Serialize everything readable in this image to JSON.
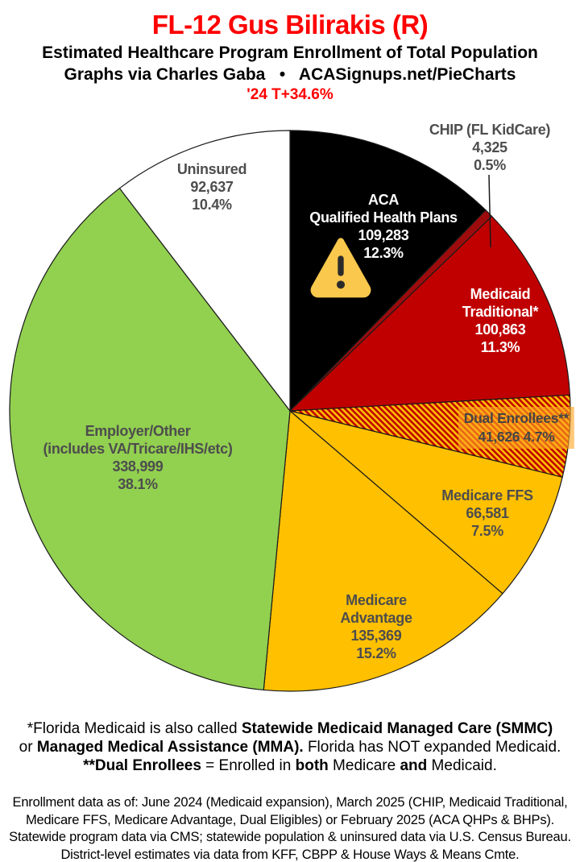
{
  "header": {
    "title": "FL-12 Gus Bilirakis (R)",
    "title_color": "#FF0000",
    "subtitle": "Estimated Healthcare Program Enrollment of Total Population",
    "byline": "Graphs via Charles Gaba   •   ACASignups.net/PieCharts",
    "trend": "'24 T+34.6%"
  },
  "chart_data": {
    "type": "pie",
    "title": "Estimated Healthcare Program Enrollment of Total Population",
    "start_angle_deg": 0,
    "direction": "clockwise",
    "total_population_shown_as_pct": 100,
    "slices": [
      {
        "name": "aca-qhp",
        "label": "ACA Qualified Health Plans",
        "value": 109283,
        "pct": 12.3,
        "color": "#000000",
        "hatch": false
      },
      {
        "name": "chip",
        "label": "CHIP (FL KidCare)",
        "value": 4325,
        "pct": 0.5,
        "color": "#9E0B0C",
        "hatch": false
      },
      {
        "name": "medicaid-traditional",
        "label": "Medicaid Traditional*",
        "value": 100863,
        "pct": 11.3,
        "color": "#C00000",
        "hatch": false
      },
      {
        "name": "dual-enrollees",
        "label": "Dual Enrollees**",
        "value": 41626,
        "pct": 4.7,
        "color": "#C00000",
        "hatch": true,
        "hatch_colors": [
          "#FFC000",
          "#C00000"
        ]
      },
      {
        "name": "medicare-ffs",
        "label": "Medicare FFS",
        "value": 66581,
        "pct": 7.5,
        "color": "#FFC000",
        "hatch": false
      },
      {
        "name": "medicare-advantage",
        "label": "Medicare Advantage",
        "value": 135369,
        "pct": 15.2,
        "color": "#FFC000",
        "hatch": false
      },
      {
        "name": "employer-other",
        "label": "Employer/Other (includes VA/Tricare/IHS/etc)",
        "value": 338999,
        "pct": 38.1,
        "color": "#92D050",
        "hatch": false
      },
      {
        "name": "uninsured",
        "label": "Uninsured",
        "value": 92637,
        "pct": 10.4,
        "color": "#FFFFFF",
        "hatch": false
      }
    ]
  },
  "labels": {
    "aca": {
      "lines": [
        "ACA",
        "Qualified Health Plans",
        "109,283",
        "12.3%"
      ]
    },
    "chip": {
      "lines": [
        "CHIP (FL KidCare)",
        "4,325",
        "0.5%"
      ]
    },
    "medicaid": {
      "lines": [
        "Medicaid",
        "Traditional*",
        "100,863",
        "11.3%"
      ]
    },
    "dual": {
      "lines": [
        "Dual Enrollees**",
        "41,626 4.7%"
      ]
    },
    "ffs": {
      "lines": [
        "Medicare FFS",
        "66,581",
        "7.5%"
      ]
    },
    "advantage": {
      "lines": [
        "Medicare",
        "Advantage",
        "135,369",
        "15.2%"
      ]
    },
    "employer": {
      "lines": [
        "Employer/Other",
        "(includes VA/Tricare/IHS/etc)",
        "338,999",
        "38.1%"
      ]
    },
    "uninsured": {
      "lines": [
        "Uninsured",
        "92,637",
        "10.4%"
      ]
    }
  },
  "warning_icon": {
    "meaning": "warning-triangle",
    "triangle_color": "#F9C84C",
    "mark_color": "#2B2B2B"
  },
  "footnote_1": {
    "l1_a": "*Florida Medicaid is also called ",
    "l1_b": "Statewide Medicaid Managed Care (SMMC)",
    "l2_a": "or ",
    "l2_b": "Managed Medical Assistance (MMA).",
    "l2_c": " Florida has NOT expanded Medicaid.",
    "l3_a": "**Dual Enrollees",
    "l3_b": " = Enrolled in ",
    "l3_c": "both",
    "l3_d": " Medicare ",
    "l3_e": "and",
    "l3_f": " Medicaid."
  },
  "footnote_2": {
    "lines": [
      "Enrollment data as of: June 2024 (Medicaid expansion), March 2025 (CHIP, Medicaid Traditional,",
      "Medicare FFS, Medicare Advantage, Dual Eligibles) or February 2025 (ACA QHPs & BHPs).",
      "Statewide program data via CMS; statewide population & uninsured data via U.S. Census Bureau.",
      "District-level estimates via data from KFF, CBPP & House Ways & Means Cmte."
    ]
  }
}
